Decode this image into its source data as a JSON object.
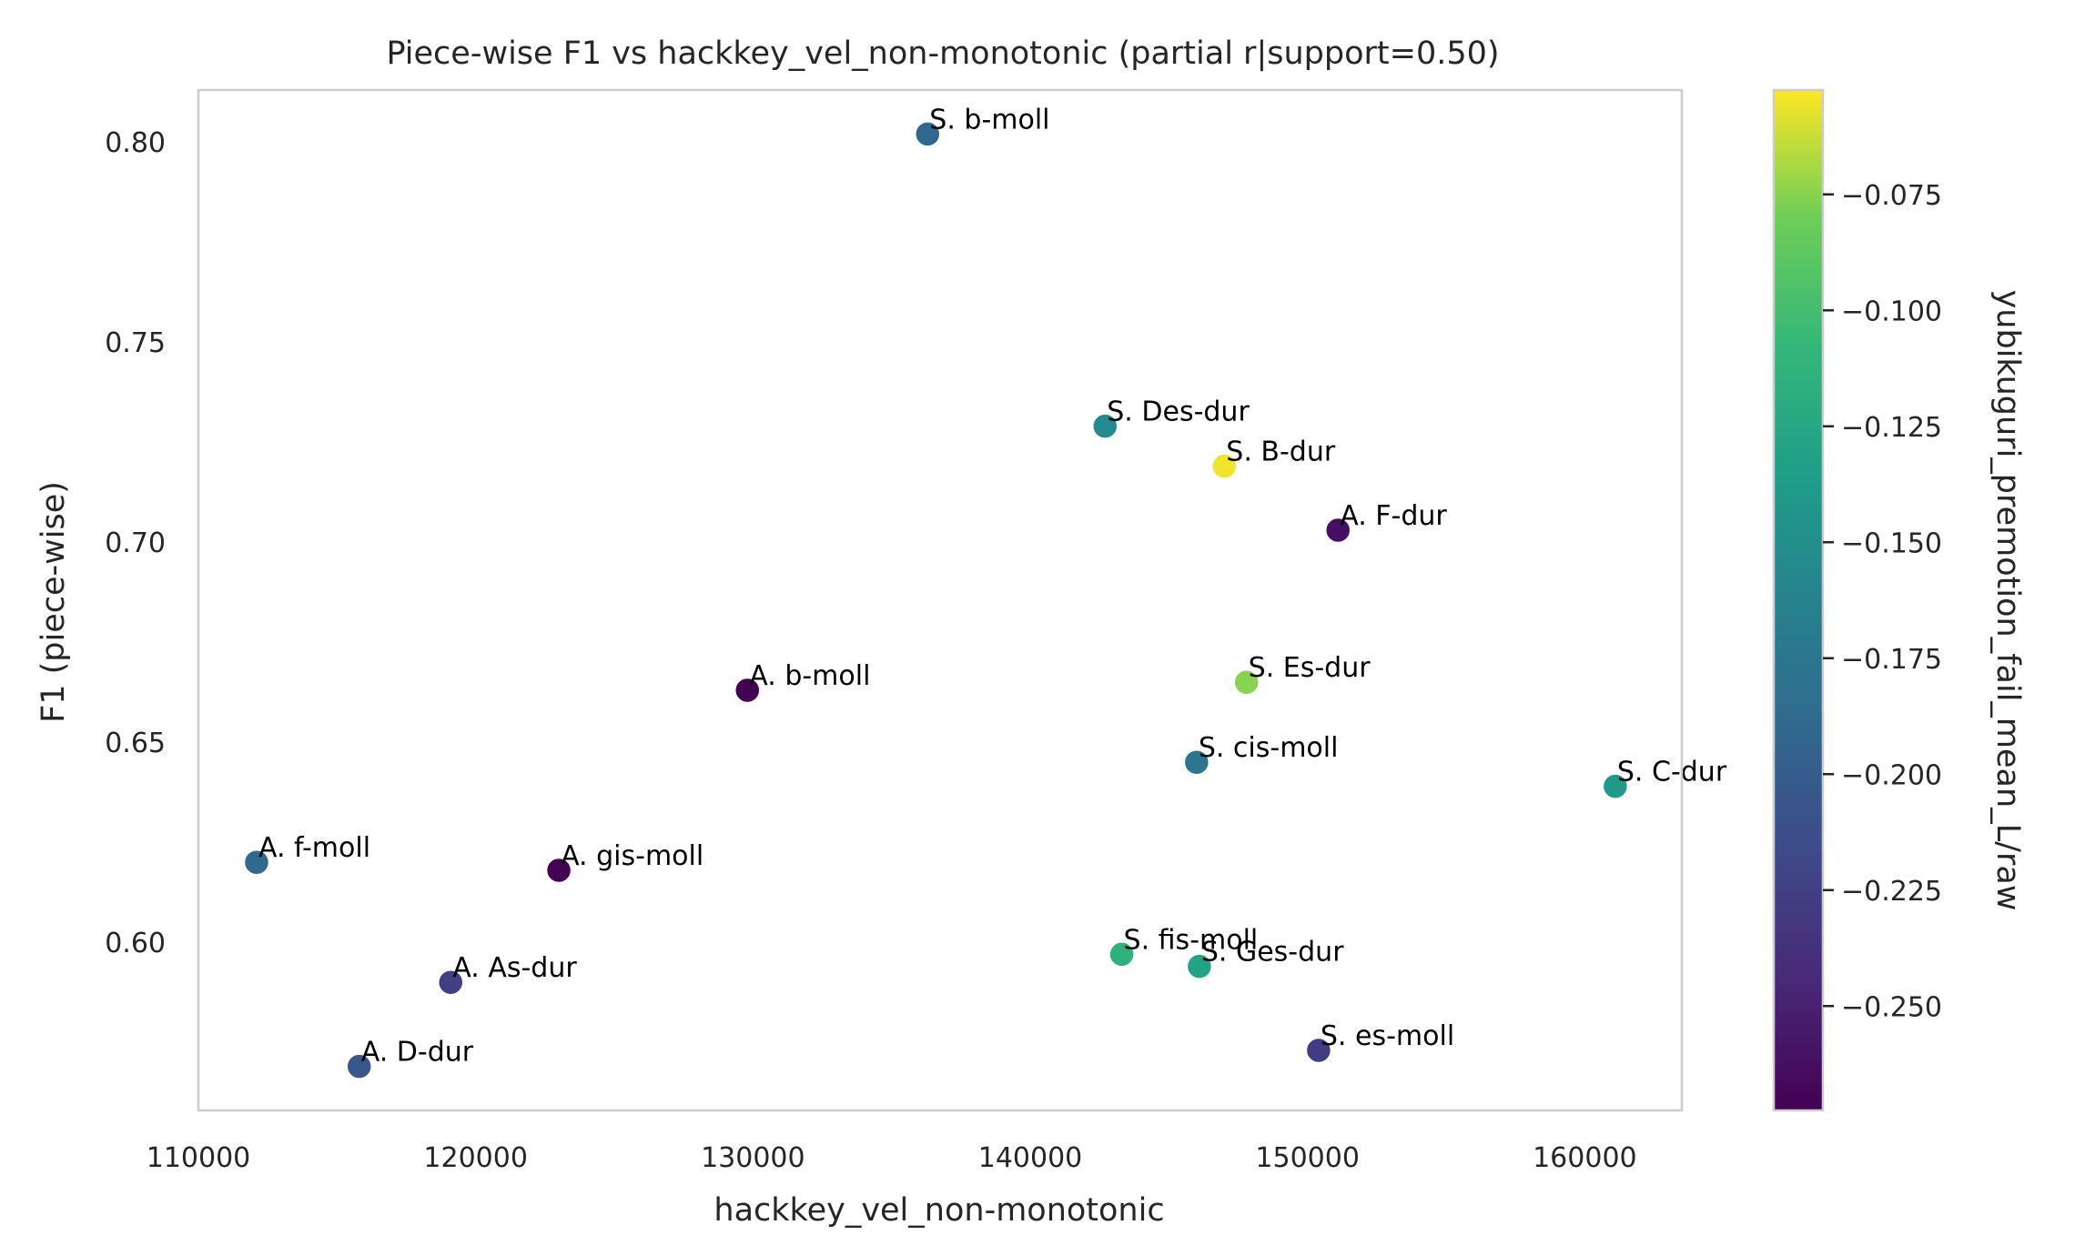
{
  "chart_data": {
    "type": "scatter",
    "title": "Piece-wise F1 vs hackkey_vel_non-monotonic (partial r|support=0.50)",
    "xlabel": "hackkey_vel_non-monotonic",
    "ylabel": "F1 (piece-wise)",
    "xlim": [
      110000,
      163500
    ],
    "ylim": [
      0.558,
      0.813
    ],
    "xticks": [
      110000,
      120000,
      130000,
      140000,
      150000,
      160000
    ],
    "xtick_labels": [
      "110000",
      "120000",
      "130000",
      "140000",
      "150000",
      "160000"
    ],
    "yticks": [
      0.6,
      0.65,
      0.7,
      0.75,
      0.8
    ],
    "ytick_labels": [
      "0.60",
      "0.65",
      "0.70",
      "0.75",
      "0.80"
    ],
    "grid": false,
    "colorbar": {
      "label": "yubikuguri_premotion_fail_mean_L/raw",
      "colormap": "viridis",
      "range": [
        -0.2725,
        -0.0525
      ],
      "ticks": [
        -0.075,
        -0.1,
        -0.125,
        -0.15,
        -0.175,
        -0.2,
        -0.225,
        -0.25
      ],
      "tick_labels": [
        "−0.075",
        "−0.100",
        "−0.125",
        "−0.150",
        "−0.175",
        "−0.200",
        "−0.225",
        "−0.250"
      ]
    },
    "points": [
      {
        "label": "S. b-moll",
        "x": 136300,
        "y": 0.802,
        "c": -0.19
      },
      {
        "label": "S. Des-dur",
        "x": 142700,
        "y": 0.729,
        "c": -0.155
      },
      {
        "label": "S. B-dur",
        "x": 147000,
        "y": 0.719,
        "c": -0.055
      },
      {
        "label": "A. F-dur",
        "x": 151100,
        "y": 0.703,
        "c": -0.262
      },
      {
        "label": "A. b-moll",
        "x": 129800,
        "y": 0.663,
        "c": -0.272
      },
      {
        "label": "S. Es-dur",
        "x": 147800,
        "y": 0.665,
        "c": -0.075
      },
      {
        "label": "S. cis-moll",
        "x": 146000,
        "y": 0.645,
        "c": -0.175
      },
      {
        "label": "S. C-dur",
        "x": 161100,
        "y": 0.639,
        "c": -0.14
      },
      {
        "label": "A. f-moll",
        "x": 112100,
        "y": 0.62,
        "c": -0.19
      },
      {
        "label": "A. gis-moll",
        "x": 123000,
        "y": 0.618,
        "c": -0.272
      },
      {
        "label": "S. fis-moll",
        "x": 143300,
        "y": 0.597,
        "c": -0.115
      },
      {
        "label": "S. Ges-dur",
        "x": 146100,
        "y": 0.594,
        "c": -0.13
      },
      {
        "label": "A. As-dur",
        "x": 119100,
        "y": 0.59,
        "c": -0.225
      },
      {
        "label": "S. es-moll",
        "x": 150400,
        "y": 0.573,
        "c": -0.228
      },
      {
        "label": "A. D-dur",
        "x": 115800,
        "y": 0.569,
        "c": -0.205
      }
    ]
  }
}
